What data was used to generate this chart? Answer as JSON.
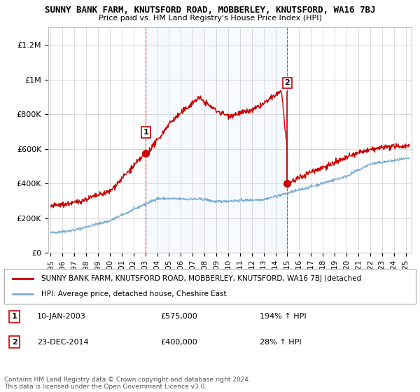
{
  "title": "SUNNY BANK FARM, KNUTSFORD ROAD, MOBBERLEY, KNUTSFORD, WA16 7BJ",
  "subtitle": "Price paid vs. HM Land Registry's House Price Index (HPI)",
  "ylabel_ticks": [
    "£0",
    "£200K",
    "£400K",
    "£600K",
    "£800K",
    "£1M",
    "£1.2M"
  ],
  "ytick_values": [
    0,
    200000,
    400000,
    600000,
    800000,
    1000000,
    1200000
  ],
  "ylim": [
    0,
    1300000
  ],
  "xlim_start": 1994.8,
  "xlim_end": 2025.5,
  "sale1_x": 2003.05,
  "sale1_y": 575000,
  "sale1_label": "1",
  "sale1_date": "10-JAN-2003",
  "sale1_price": "£575,000",
  "sale1_hpi": "194% ↑ HPI",
  "sale2_x": 2014.98,
  "sale2_y": 400000,
  "sale2_peak_y": 930000,
  "sale2_label": "2",
  "sale2_date": "23-DEC-2014",
  "sale2_price": "£400,000",
  "sale2_hpi": "28% ↑ HPI",
  "line_color_red": "#cc0000",
  "line_color_blue": "#7bafd4",
  "vline_color": "#cc0000",
  "shade_color": "#ddeeff",
  "background_color": "#ffffff",
  "grid_color": "#cccccc",
  "legend_label_red": "SUNNY BANK FARM, KNUTSFORD ROAD, MOBBERLEY, KNUTSFORD, WA16 7BJ (detached",
  "legend_label_blue": "HPI: Average price, detached house, Cheshire East",
  "footer": "Contains HM Land Registry data © Crown copyright and database right 2024.\nThis data is licensed under the Open Government Licence v3.0.",
  "xtick_years": [
    1995,
    1996,
    1997,
    1998,
    1999,
    2000,
    2001,
    2002,
    2003,
    2004,
    2005,
    2006,
    2007,
    2008,
    2009,
    2010,
    2011,
    2012,
    2013,
    2014,
    2015,
    2016,
    2017,
    2018,
    2019,
    2020,
    2021,
    2022,
    2023,
    2024,
    2025
  ]
}
